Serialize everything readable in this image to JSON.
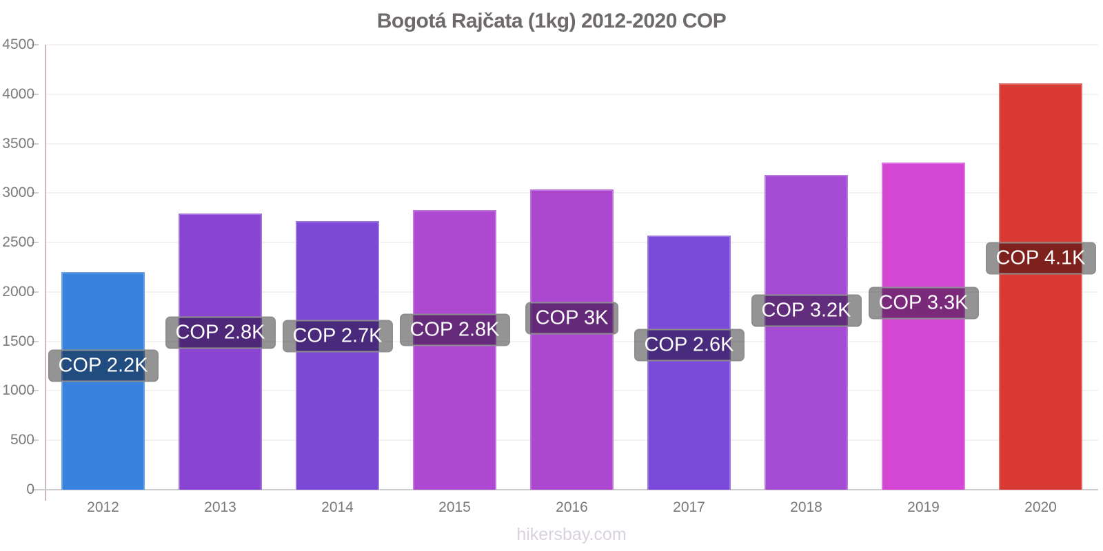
{
  "title": "Bogotá Rajčata (1kg) 2012-2020 COP",
  "watermark": "hikersbay.com",
  "chart_data": {
    "type": "bar",
    "title": "Bogotá Rajčata (1kg) 2012-2020 COP",
    "xlabel": "",
    "ylabel": "",
    "currency": "COP",
    "categories": [
      "2012",
      "2013",
      "2014",
      "2015",
      "2016",
      "2017",
      "2018",
      "2019",
      "2020"
    ],
    "values": [
      2200,
      2790,
      2720,
      2830,
      3040,
      2570,
      3180,
      3310,
      4110
    ],
    "bar_labels": [
      "COP 2.2K",
      "COP 2.8K",
      "COP 2.7K",
      "COP 2.8K",
      "COP 3K",
      "COP 2.6K",
      "COP 3.2K",
      "COP 3.3K",
      "COP 4.1K"
    ],
    "bar_colors": [
      "#3a83dc",
      "#8944d1",
      "#7c48d6",
      "#ae49d2",
      "#ac48cf",
      "#7c4ad8",
      "#a54cd4",
      "#d247d4",
      "#d93933"
    ],
    "ylim": [
      0,
      4500
    ],
    "yticks": [
      0,
      500,
      1000,
      1500,
      2000,
      2500,
      3000,
      3500,
      4000,
      4500
    ],
    "grid": true,
    "legend": "none"
  },
  "style_colors": {
    "title_text": "#6d696d",
    "tick_text": "#7b787d",
    "y_axis_line": "#c8b9c1",
    "x_axis_line": "#cccccc",
    "gridline": "#f4f1f3",
    "label_box_bg": "rgba(0,0,0,0.42)",
    "label_box_border": "#8d8d8d",
    "label_text": "#ffffff",
    "watermark_text": "#d9d2de"
  }
}
